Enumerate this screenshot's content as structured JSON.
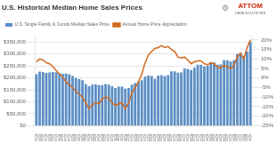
{
  "chart_data": {
    "type": "bar",
    "title": "U.S. Historical Median Home Sales Prices",
    "categories": [
      "05Q1",
      "05Q2",
      "05Q3",
      "05Q4",
      "06Q1",
      "06Q2",
      "06Q3",
      "06Q4",
      "07Q1",
      "07Q2",
      "07Q3",
      "07Q4",
      "08Q1",
      "08Q2",
      "08Q3",
      "08Q4",
      "09Q1",
      "09Q2",
      "09Q3",
      "09Q4",
      "10Q1",
      "10Q2",
      "10Q3",
      "10Q4",
      "11Q1",
      "11Q2",
      "11Q3",
      "11Q4",
      "12Q1",
      "12Q2",
      "12Q3",
      "12Q4",
      "13Q1",
      "13Q2",
      "13Q3",
      "13Q4",
      "14Q1",
      "14Q2",
      "14Q3",
      "14Q4",
      "15Q1",
      "15Q2",
      "15Q3",
      "15Q4",
      "16Q1",
      "16Q2",
      "16Q3",
      "16Q4",
      "17Q1",
      "17Q2",
      "17Q3",
      "17Q4",
      "18Q1",
      "18Q2",
      "18Q3",
      "18Q4",
      "19Q1",
      "19Q2",
      "19Q3",
      "19Q4",
      "20Q1",
      "20Q2",
      "20Q3",
      "20Q4",
      "21Q1",
      "21Q2"
    ],
    "series": [
      {
        "name": "U.S. Single Family & Condo Median Sales Price",
        "type": "bar",
        "color": "#5b8ec4",
        "values": [
          215000,
          227000,
          225000,
          221000,
          223000,
          225000,
          224000,
          220000,
          217000,
          218000,
          215000,
          208000,
          200000,
          195000,
          190000,
          175000,
          165000,
          172000,
          174000,
          170000,
          170000,
          175000,
          172000,
          165000,
          158000,
          163000,
          163000,
          155000,
          158000,
          172000,
          178000,
          185000,
          190000,
          205000,
          210000,
          208000,
          196000,
          210000,
          212000,
          208000,
          212000,
          228000,
          228000,
          222000,
          223000,
          240000,
          238000,
          233000,
          243000,
          255000,
          255000,
          248000,
          252000,
          266000,
          265000,
          255000,
          256000,
          274000,
          274000,
          268000,
          274000,
          300000,
          305000,
          293000,
          310000,
          350000
        ]
      },
      {
        "name": "Annual Home Price Appreciation",
        "type": "line",
        "axis": "y2",
        "color": "#d2691e",
        "values": [
          8.5,
          10.0,
          9.5,
          8.0,
          7.5,
          6.0,
          4.0,
          2.0,
          0.5,
          -2.0,
          -3.5,
          -5.0,
          -7.0,
          -8.5,
          -10.0,
          -13.0,
          -16.0,
          -14.0,
          -13.0,
          -13.5,
          -11.0,
          -10.0,
          -10.5,
          -13.0,
          -14.5,
          -13.5,
          -13.0,
          -16.0,
          -13.0,
          -8.0,
          -5.0,
          -2.0,
          2.0,
          8.0,
          12.0,
          14.0,
          15.5,
          16.0,
          17.0,
          16.0,
          16.5,
          15.0,
          14.0,
          11.0,
          10.5,
          11.0,
          9.5,
          7.5,
          8.5,
          9.0,
          9.0,
          7.5,
          7.0,
          8.0,
          7.5,
          5.5,
          5.5,
          6.5,
          6.0,
          5.0,
          6.5,
          11.0,
          13.0,
          10.0,
          16.0,
          20.0
        ]
      }
    ],
    "ylim": [
      0,
      375000
    ],
    "yticks": [
      {
        "value": 0,
        "label": "$0"
      },
      {
        "value": 50000,
        "label": "$50,000"
      },
      {
        "value": 100000,
        "label": "$100,000"
      },
      {
        "value": 150000,
        "label": "$150,000"
      },
      {
        "value": 200000,
        "label": "$200,000"
      },
      {
        "value": 250000,
        "label": "$250,000"
      },
      {
        "value": 300000,
        "label": "$300,000"
      },
      {
        "value": 350000,
        "label": "$350,000"
      }
    ],
    "y2lim": [
      -25,
      22
    ],
    "y2ticks": [
      {
        "value": -25,
        "label": "-25%"
      },
      {
        "value": -20,
        "label": "-20%"
      },
      {
        "value": -15,
        "label": "-15%"
      },
      {
        "value": -10,
        "label": "-10%"
      },
      {
        "value": -5,
        "label": "-5%"
      },
      {
        "value": 0,
        "label": "0%"
      },
      {
        "value": 5,
        "label": "5%"
      },
      {
        "value": 10,
        "label": "10%"
      },
      {
        "value": 15,
        "label": "15%"
      },
      {
        "value": 20,
        "label": "20%"
      }
    ],
    "grid": true,
    "legend": "upper left",
    "annotations": [
      "ATTOM",
      "DATA SOLUTIONS",
      "⚙"
    ]
  }
}
